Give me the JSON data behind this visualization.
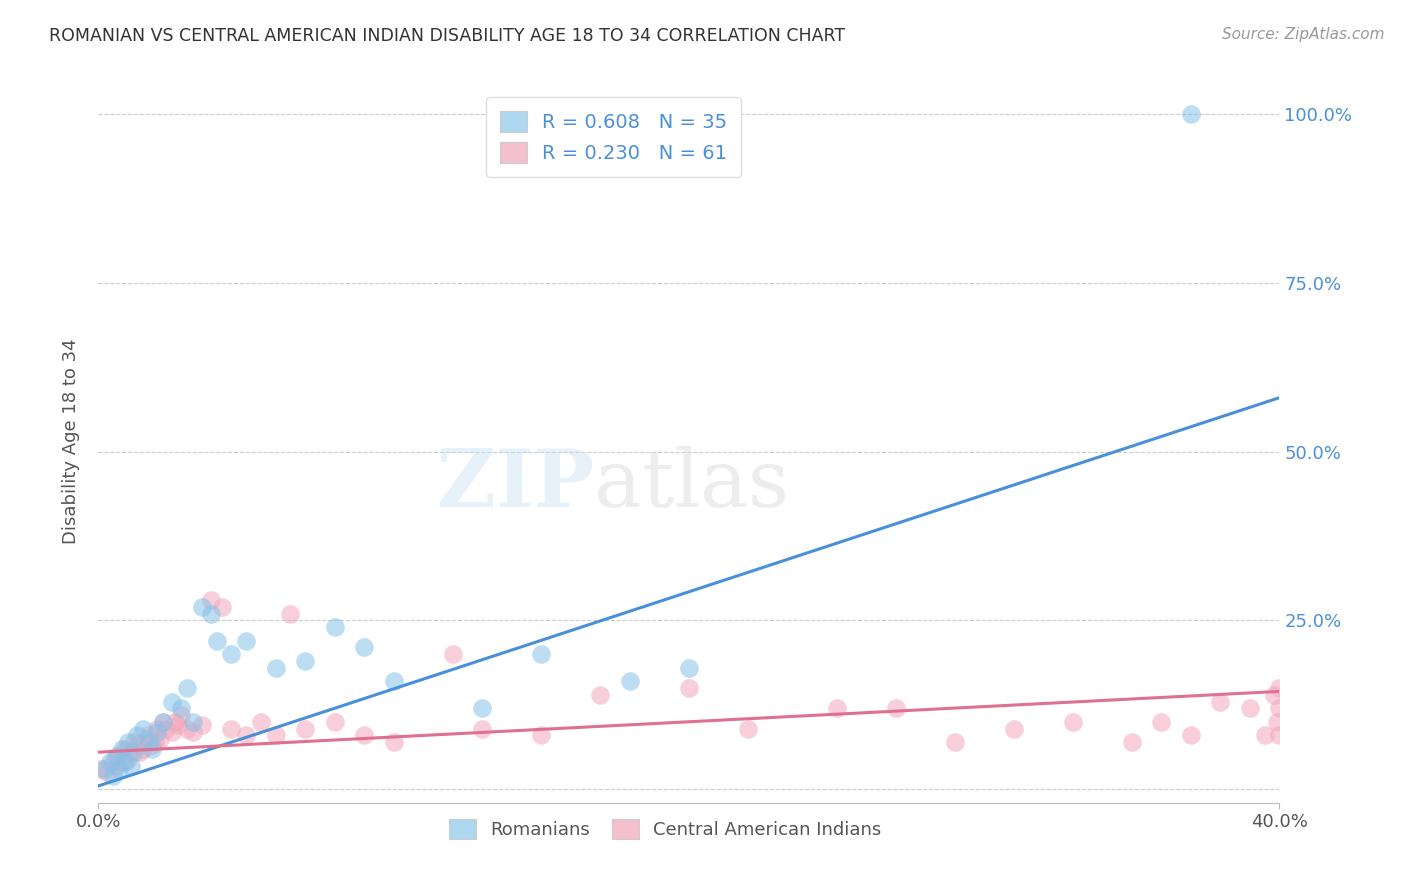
{
  "title": "ROMANIAN VS CENTRAL AMERICAN INDIAN DISABILITY AGE 18 TO 34 CORRELATION CHART",
  "source": "Source: ZipAtlas.com",
  "ylabel": "Disability Age 18 to 34",
  "xlim": [
    0.0,
    0.4
  ],
  "ylim": [
    -0.02,
    1.05
  ],
  "ytick_values": [
    0.0,
    0.25,
    0.5,
    0.75,
    1.0
  ],
  "xtick_labels": [
    "0.0%",
    "40.0%"
  ],
  "xtick_values": [
    0.0,
    0.4
  ],
  "right_ytick_labels": [
    "100.0%",
    "75.0%",
    "50.0%",
    "25.0%"
  ],
  "right_ytick_values": [
    1.0,
    0.75,
    0.5,
    0.25
  ],
  "blue_color": "#85C1E8",
  "pink_color": "#F1A7BC",
  "blue_line_color": "#4A90D9",
  "pink_line_color": "#E07090",
  "legend_blue_color": "#ADD8F0",
  "legend_pink_color": "#F5C0CE",
  "R_blue": 0.608,
  "N_blue": 35,
  "R_pink": 0.23,
  "N_pink": 61,
  "blue_scatter_x": [
    0.002,
    0.004,
    0.005,
    0.006,
    0.007,
    0.008,
    0.009,
    0.01,
    0.011,
    0.012,
    0.013,
    0.015,
    0.017,
    0.018,
    0.02,
    0.022,
    0.025,
    0.028,
    0.03,
    0.032,
    0.035,
    0.038,
    0.04,
    0.045,
    0.05,
    0.06,
    0.07,
    0.08,
    0.09,
    0.1,
    0.13,
    0.15,
    0.18,
    0.2,
    0.37
  ],
  "blue_scatter_y": [
    0.03,
    0.04,
    0.02,
    0.05,
    0.03,
    0.06,
    0.04,
    0.07,
    0.035,
    0.055,
    0.08,
    0.09,
    0.07,
    0.06,
    0.085,
    0.1,
    0.13,
    0.12,
    0.15,
    0.1,
    0.27,
    0.26,
    0.22,
    0.2,
    0.22,
    0.18,
    0.19,
    0.24,
    0.21,
    0.16,
    0.12,
    0.2,
    0.16,
    0.18,
    1.0
  ],
  "pink_scatter_x": [
    0.001,
    0.003,
    0.005,
    0.006,
    0.007,
    0.008,
    0.009,
    0.01,
    0.011,
    0.012,
    0.013,
    0.014,
    0.015,
    0.016,
    0.017,
    0.018,
    0.019,
    0.02,
    0.021,
    0.022,
    0.023,
    0.025,
    0.026,
    0.027,
    0.028,
    0.03,
    0.032,
    0.035,
    0.038,
    0.042,
    0.045,
    0.05,
    0.055,
    0.06,
    0.065,
    0.07,
    0.08,
    0.09,
    0.1,
    0.12,
    0.13,
    0.15,
    0.17,
    0.2,
    0.22,
    0.25,
    0.27,
    0.29,
    0.31,
    0.33,
    0.35,
    0.36,
    0.37,
    0.38,
    0.39,
    0.395,
    0.398,
    0.399,
    0.4,
    0.4,
    0.4
  ],
  "pink_scatter_y": [
    0.03,
    0.025,
    0.04,
    0.035,
    0.05,
    0.04,
    0.06,
    0.045,
    0.055,
    0.07,
    0.065,
    0.055,
    0.06,
    0.075,
    0.08,
    0.065,
    0.07,
    0.09,
    0.075,
    0.1,
    0.09,
    0.085,
    0.1,
    0.095,
    0.11,
    0.09,
    0.085,
    0.095,
    0.28,
    0.27,
    0.09,
    0.08,
    0.1,
    0.08,
    0.26,
    0.09,
    0.1,
    0.08,
    0.07,
    0.2,
    0.09,
    0.08,
    0.14,
    0.15,
    0.09,
    0.12,
    0.12,
    0.07,
    0.09,
    0.1,
    0.07,
    0.1,
    0.08,
    0.13,
    0.12,
    0.08,
    0.14,
    0.1,
    0.15,
    0.08,
    0.12
  ],
  "blue_line_x0": 0.0,
  "blue_line_y0": 0.005,
  "blue_line_x1": 0.4,
  "blue_line_y1": 0.58,
  "pink_line_x0": 0.0,
  "pink_line_y0": 0.055,
  "pink_line_x1": 0.4,
  "pink_line_y1": 0.145,
  "watermark_zip": "ZIP",
  "watermark_atlas": "atlas",
  "background_color": "#FFFFFF",
  "grid_color": "#CCCCCC",
  "title_color": "#333333",
  "source_color": "#999999",
  "label_color": "#555555",
  "tick_color": "#4A90D9"
}
